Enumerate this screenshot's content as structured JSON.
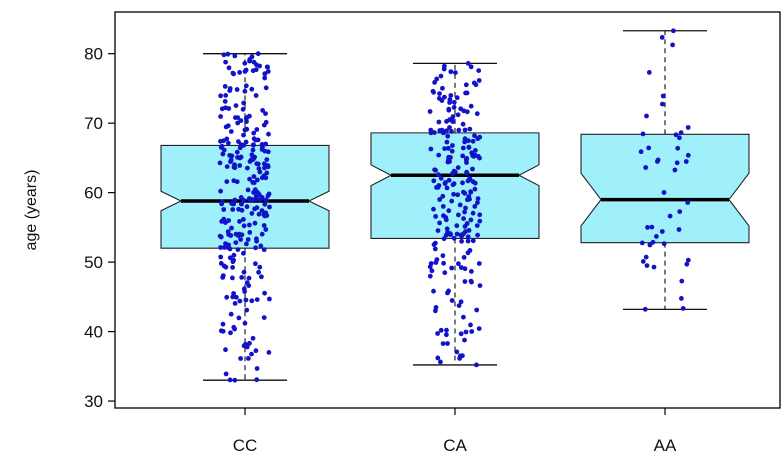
{
  "colors": {
    "box_fill": "#9ff0fb",
    "box_stroke": "#222222",
    "points": "#1212c8",
    "median": "#000000",
    "axis": "#000000"
  },
  "chart_data": {
    "type": "boxplot",
    "title": "",
    "xlabel": "",
    "ylabel": "age (years)",
    "ylim": [
      29,
      86
    ],
    "yticks": [
      30,
      40,
      50,
      60,
      70,
      80
    ],
    "notched": true,
    "jitter_points": true,
    "categories": [
      "CC",
      "CA",
      "AA"
    ],
    "boxes": [
      {
        "name": "CC",
        "whisker_low": 33,
        "q1": 52,
        "median": 58.8,
        "q3": 66.8,
        "whisker_high": 80,
        "notch_low": 57.4,
        "notch_high": 60.2,
        "n_points": 280
      },
      {
        "name": "CA",
        "whisker_low": 35.2,
        "q1": 53.4,
        "median": 62.5,
        "q3": 68.6,
        "whisker_high": 78.6,
        "notch_low": 61,
        "notch_high": 64,
        "n_points": 230
      },
      {
        "name": "AA",
        "whisker_low": 43.2,
        "q1": 52.8,
        "median": 59,
        "q3": 68.4,
        "whisker_high": 83.3,
        "notch_low": 55.2,
        "notch_high": 62.8,
        "n_points": 45
      }
    ]
  }
}
